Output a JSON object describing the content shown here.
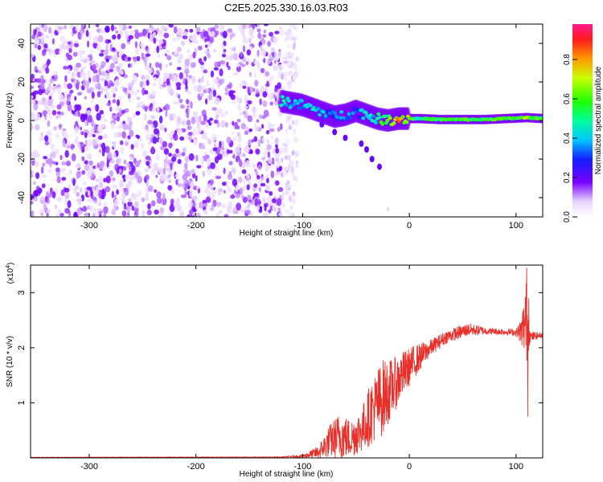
{
  "title": "C2E5.2025.330.16.03.R03",
  "colors": {
    "snr_line": "#e8302a",
    "dot_base": "#7b1fff",
    "axis": "#000000"
  },
  "chart_data": [
    {
      "type": "heatmap",
      "name": "spectrogram",
      "xlabel": "Height of straight line (km)",
      "ylabel": "Frequency (Hz)",
      "xlim": [
        -355,
        125
      ],
      "ylim": [
        -50,
        50
      ],
      "xticks": [
        -300,
        -200,
        -100,
        0,
        100
      ],
      "yticks": [
        -40,
        -20,
        0,
        20,
        40
      ],
      "noise_region_km": [
        -355,
        -120
      ],
      "trace": [
        {
          "x": -120,
          "y": 10,
          "amp": 0.5
        },
        {
          "x": -110,
          "y": 9,
          "amp": 0.45
        },
        {
          "x": -100,
          "y": 8,
          "amp": 0.4
        },
        {
          "x": -90,
          "y": 6,
          "amp": 0.45
        },
        {
          "x": -80,
          "y": 4,
          "amp": 0.4
        },
        {
          "x": -70,
          "y": 2,
          "amp": 0.35
        },
        {
          "x": -60,
          "y": 3,
          "amp": 0.4
        },
        {
          "x": -50,
          "y": 5,
          "amp": 0.35
        },
        {
          "x": -40,
          "y": 3,
          "amp": 0.45
        },
        {
          "x": -30,
          "y": 1,
          "amp": 0.5
        },
        {
          "x": -20,
          "y": 0,
          "amp": 0.7
        },
        {
          "x": -10,
          "y": 1,
          "amp": 0.85
        },
        {
          "x": 0,
          "y": 1,
          "amp": 0.7
        },
        {
          "x": 10,
          "y": 1,
          "amp": 0.55
        },
        {
          "x": 30,
          "y": 0.5,
          "amp": 0.6
        },
        {
          "x": 50,
          "y": 0.5,
          "amp": 0.65
        },
        {
          "x": 70,
          "y": 0.5,
          "amp": 0.6
        },
        {
          "x": 90,
          "y": 1,
          "amp": 0.65
        },
        {
          "x": 110,
          "y": 1.5,
          "amp": 0.7
        },
        {
          "x": 125,
          "y": 1,
          "amp": 0.6
        }
      ],
      "colorbar": {
        "label": "Normalized spectral amplitude",
        "ticks": [
          "0.0",
          "0.2",
          "0.4",
          "0.6",
          "0.8"
        ],
        "range": [
          0,
          0.98
        ]
      }
    },
    {
      "type": "line",
      "name": "snr",
      "xlabel": "Height of straight line (km)",
      "ylabel": "SNR (10 * v/v)",
      "scale_label": "(x10",
      "scale_exp": "4",
      "scale_close": ")",
      "xlim": [
        -355,
        125
      ],
      "ylim": [
        0,
        3.5
      ],
      "xticks": [
        -300,
        -200,
        -100,
        0,
        100
      ],
      "yticks": [
        1,
        2,
        3
      ],
      "envelope": [
        {
          "x": -355,
          "mean": 0.01,
          "noise": 0.003
        },
        {
          "x": -120,
          "mean": 0.015,
          "noise": 0.005
        },
        {
          "x": -100,
          "mean": 0.03,
          "noise": 0.03
        },
        {
          "x": -85,
          "mean": 0.1,
          "noise": 0.12
        },
        {
          "x": -75,
          "mean": 0.3,
          "noise": 0.3
        },
        {
          "x": -65,
          "mean": 0.4,
          "noise": 0.45
        },
        {
          "x": -55,
          "mean": 0.35,
          "noise": 0.35
        },
        {
          "x": -45,
          "mean": 0.5,
          "noise": 0.4
        },
        {
          "x": -35,
          "mean": 0.85,
          "noise": 0.6
        },
        {
          "x": -25,
          "mean": 1.1,
          "noise": 0.7
        },
        {
          "x": -15,
          "mean": 1.3,
          "noise": 0.5
        },
        {
          "x": -5,
          "mean": 1.55,
          "noise": 0.4
        },
        {
          "x": 5,
          "mean": 1.75,
          "noise": 0.3
        },
        {
          "x": 20,
          "mean": 2.0,
          "noise": 0.15
        },
        {
          "x": 35,
          "mean": 2.2,
          "noise": 0.12
        },
        {
          "x": 55,
          "mean": 2.33,
          "noise": 0.12
        },
        {
          "x": 75,
          "mean": 2.3,
          "noise": 0.06
        },
        {
          "x": 100,
          "mean": 2.28,
          "noise": 0.06
        },
        {
          "x": 105,
          "mean": 2.3,
          "noise": 0.25
        },
        {
          "x": 110,
          "mean": 2.5,
          "noise": 0.8
        },
        {
          "x": 113,
          "mean": 2.2,
          "noise": 0.1
        },
        {
          "x": 125,
          "mean": 2.23,
          "noise": 0.04
        }
      ],
      "peaks": [
        {
          "x": 110,
          "y": 3.45
        },
        {
          "x": 111,
          "y": 0.75
        },
        {
          "x": 112,
          "y": 2.9
        }
      ]
    }
  ]
}
